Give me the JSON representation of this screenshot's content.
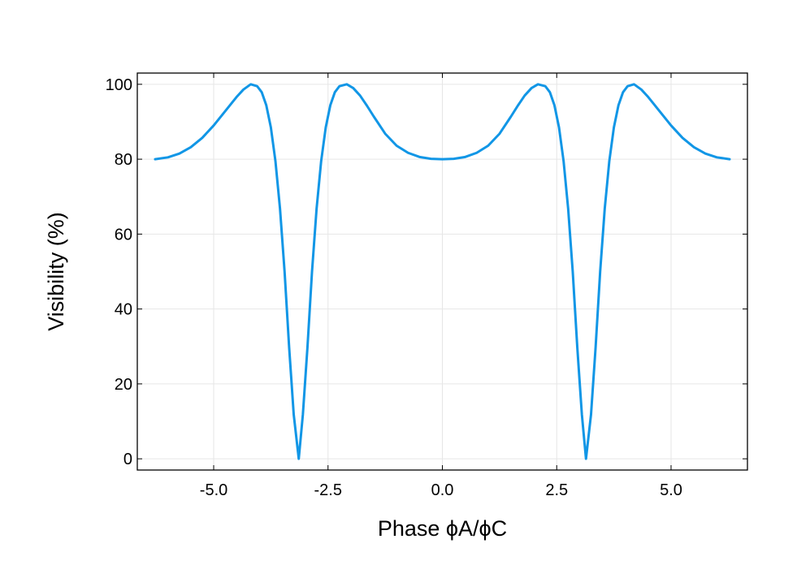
{
  "chart_data": {
    "type": "line",
    "title": "",
    "xlabel": "Phase ϕA/ϕC",
    "ylabel": "Visibility (%)",
    "xlim": [
      -6.67,
      6.67
    ],
    "ylim": [
      -3,
      103
    ],
    "xticks": [
      -5.0,
      -2.5,
      0.0,
      2.5,
      5.0
    ],
    "xtick_labels": [
      "-5.0",
      "-2.5",
      "0.0",
      "2.5",
      "5.0"
    ],
    "yticks": [
      0,
      20,
      40,
      60,
      80,
      100
    ],
    "ytick_labels": [
      "0",
      "20",
      "40",
      "60",
      "80",
      "100"
    ],
    "grid": true,
    "legend": "none",
    "series_color": "#1196e6",
    "series": [
      {
        "x": [
          -6.28,
          -6.0,
          -5.75,
          -5.5,
          -5.25,
          -5.0,
          -4.75,
          -4.5,
          -4.35,
          -4.19,
          -4.05,
          -3.95,
          -3.85,
          -3.75,
          -3.65,
          -3.55,
          -3.45,
          -3.35,
          -3.25,
          -3.14,
          -3.05,
          -2.95,
          -2.85,
          -2.75,
          -2.65,
          -2.55,
          -2.45,
          -2.35,
          -2.25,
          -2.09,
          -1.95,
          -1.8,
          -1.65,
          -1.5,
          -1.25,
          -1.0,
          -0.75,
          -0.5,
          -0.25,
          0.0,
          0.25,
          0.5,
          0.75,
          1.0,
          1.25,
          1.5,
          1.65,
          1.8,
          1.95,
          2.09,
          2.25,
          2.35,
          2.45,
          2.55,
          2.65,
          2.75,
          2.85,
          2.95,
          3.05,
          3.14,
          3.25,
          3.35,
          3.45,
          3.55,
          3.65,
          3.75,
          3.85,
          3.95,
          4.05,
          4.19,
          4.35,
          4.5,
          4.75,
          5.0,
          5.25,
          5.5,
          5.75,
          6.0,
          6.28
        ],
        "y": [
          80.0,
          80.5,
          81.5,
          83.2,
          85.7,
          89.0,
          92.8,
          96.6,
          98.6,
          100.0,
          99.5,
          97.9,
          94.4,
          88.5,
          79.5,
          66.8,
          50.0,
          29.7,
          11.8,
          0.0,
          11.8,
          29.7,
          50.0,
          66.8,
          79.5,
          88.5,
          94.4,
          97.9,
          99.5,
          100.0,
          99.0,
          97.0,
          94.3,
          91.4,
          86.8,
          83.6,
          81.7,
          80.6,
          80.1,
          80.0,
          80.1,
          80.6,
          81.7,
          83.6,
          86.8,
          91.4,
          94.3,
          97.0,
          99.0,
          100.0,
          99.5,
          97.9,
          94.4,
          88.5,
          79.5,
          66.8,
          50.0,
          29.7,
          11.8,
          0.0,
          11.8,
          29.7,
          50.0,
          66.8,
          79.5,
          88.5,
          94.4,
          97.9,
          99.5,
          100.0,
          98.6,
          96.6,
          92.8,
          89.0,
          85.7,
          83.2,
          81.5,
          80.5,
          80.0
        ]
      }
    ]
  }
}
